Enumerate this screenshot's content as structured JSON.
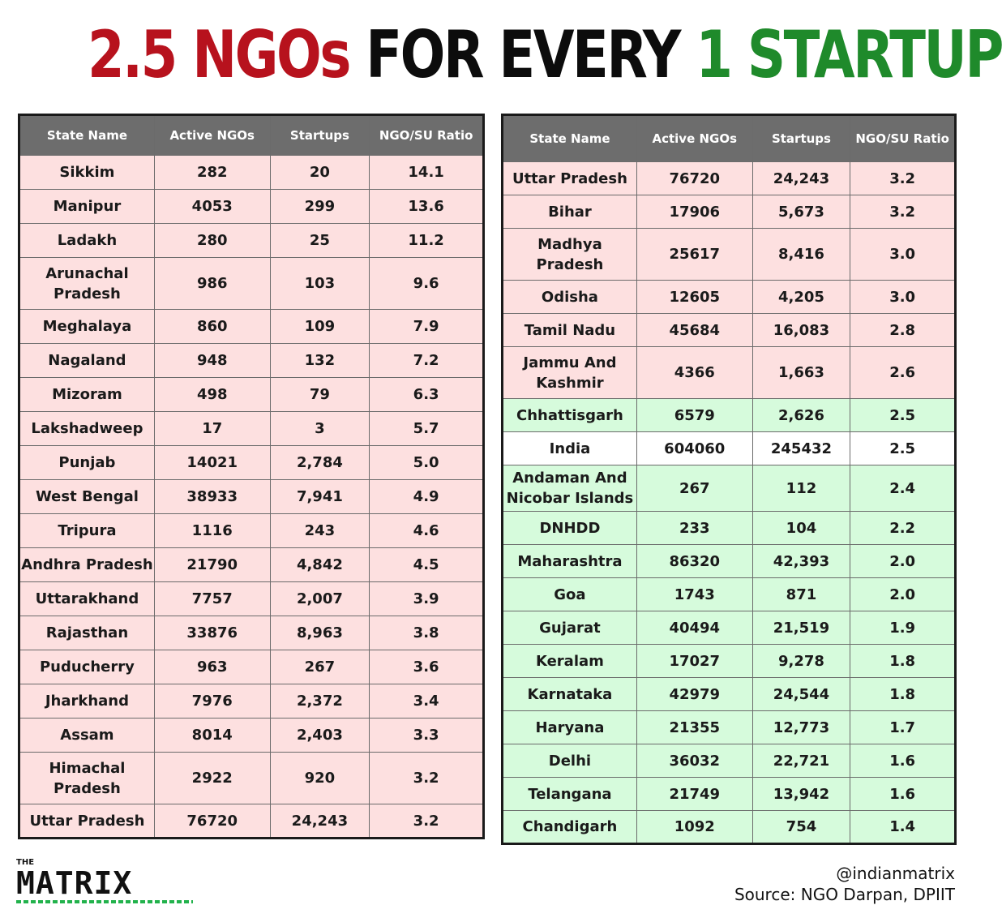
{
  "title": {
    "part1": "2.5 NGOs",
    "part2": "FOR EVERY",
    "part3": "1 STARTUP",
    "colors": {
      "red": "#b7121d",
      "black": "#0c0c0c",
      "green": "#1f8a2b"
    }
  },
  "columns": [
    "State Name",
    "Active NGOs",
    "Startups",
    "NGO/SU Ratio"
  ],
  "row_colors": {
    "pink": "#fde0e0",
    "green": "#d6fbdc",
    "white": "#ffffff",
    "header": "#6d6d6d"
  },
  "left_rows": [
    {
      "state": "Sikkim",
      "ngos": "282",
      "startups": "20",
      "ratio": "14.1",
      "tone": "pink"
    },
    {
      "state": "Manipur",
      "ngos": "4053",
      "startups": "299",
      "ratio": "13.6",
      "tone": "pink"
    },
    {
      "state": "Ladakh",
      "ngos": "280",
      "startups": "25",
      "ratio": "11.2",
      "tone": "pink"
    },
    {
      "state": "Arunachal Pradesh",
      "ngos": "986",
      "startups": "103",
      "ratio": "9.6",
      "tone": "pink"
    },
    {
      "state": "Meghalaya",
      "ngos": "860",
      "startups": "109",
      "ratio": "7.9",
      "tone": "pink"
    },
    {
      "state": "Nagaland",
      "ngos": "948",
      "startups": "132",
      "ratio": "7.2",
      "tone": "pink"
    },
    {
      "state": "Mizoram",
      "ngos": "498",
      "startups": "79",
      "ratio": "6.3",
      "tone": "pink"
    },
    {
      "state": "Lakshadweep",
      "ngos": "17",
      "startups": "3",
      "ratio": "5.7",
      "tone": "pink"
    },
    {
      "state": "Punjab",
      "ngos": "14021",
      "startups": "2,784",
      "ratio": "5.0",
      "tone": "pink"
    },
    {
      "state": "West Bengal",
      "ngos": "38933",
      "startups": "7,941",
      "ratio": "4.9",
      "tone": "pink"
    },
    {
      "state": "Tripura",
      "ngos": "1116",
      "startups": "243",
      "ratio": "4.6",
      "tone": "pink"
    },
    {
      "state": "Andhra Pradesh",
      "ngos": "21790",
      "startups": "4,842",
      "ratio": "4.5",
      "tone": "pink"
    },
    {
      "state": "Uttarakhand",
      "ngos": "7757",
      "startups": "2,007",
      "ratio": "3.9",
      "tone": "pink"
    },
    {
      "state": "Rajasthan",
      "ngos": "33876",
      "startups": "8,963",
      "ratio": "3.8",
      "tone": "pink"
    },
    {
      "state": "Puducherry",
      "ngos": "963",
      "startups": "267",
      "ratio": "3.6",
      "tone": "pink"
    },
    {
      "state": "Jharkhand",
      "ngos": "7976",
      "startups": "2,372",
      "ratio": "3.4",
      "tone": "pink"
    },
    {
      "state": "Assam",
      "ngos": "8014",
      "startups": "2,403",
      "ratio": "3.3",
      "tone": "pink"
    },
    {
      "state": "Himachal Pradesh",
      "ngos": "2922",
      "startups": "920",
      "ratio": "3.2",
      "tone": "pink"
    },
    {
      "state": "Uttar Pradesh",
      "ngos": "76720",
      "startups": "24,243",
      "ratio": "3.2",
      "tone": "pink"
    }
  ],
  "right_rows": [
    {
      "state": "Uttar Pradesh",
      "ngos": "76720",
      "startups": "24,243",
      "ratio": "3.2",
      "tone": "pink"
    },
    {
      "state": "Bihar",
      "ngos": "17906",
      "startups": "5,673",
      "ratio": "3.2",
      "tone": "pink"
    },
    {
      "state": "Madhya Pradesh",
      "ngos": "25617",
      "startups": "8,416",
      "ratio": "3.0",
      "tone": "pink"
    },
    {
      "state": "Odisha",
      "ngos": "12605",
      "startups": "4,205",
      "ratio": "3.0",
      "tone": "pink"
    },
    {
      "state": "Tamil Nadu",
      "ngos": "45684",
      "startups": "16,083",
      "ratio": "2.8",
      "tone": "pink"
    },
    {
      "state": "Jammu And Kashmir",
      "ngos": "4366",
      "startups": "1,663",
      "ratio": "2.6",
      "tone": "pink"
    },
    {
      "state": "Chhattisgarh",
      "ngos": "6579",
      "startups": "2,626",
      "ratio": "2.5",
      "tone": "green"
    },
    {
      "state": "India",
      "ngos": "604060",
      "startups": "245432",
      "ratio": "2.5",
      "tone": "white"
    },
    {
      "state": "Andaman And Nicobar Islands",
      "ngos": "267",
      "startups": "112",
      "ratio": "2.4",
      "tone": "green"
    },
    {
      "state": "DNHDD",
      "ngos": "233",
      "startups": "104",
      "ratio": "2.2",
      "tone": "green"
    },
    {
      "state": "Maharashtra",
      "ngos": "86320",
      "startups": "42,393",
      "ratio": "2.0",
      "tone": "green"
    },
    {
      "state": "Goa",
      "ngos": "1743",
      "startups": "871",
      "ratio": "2.0",
      "tone": "green"
    },
    {
      "state": "Gujarat",
      "ngos": "40494",
      "startups": "21,519",
      "ratio": "1.9",
      "tone": "green"
    },
    {
      "state": "Keralam",
      "ngos": "17027",
      "startups": "9,278",
      "ratio": "1.8",
      "tone": "green"
    },
    {
      "state": "Karnataka",
      "ngos": "42979",
      "startups": "24,544",
      "ratio": "1.8",
      "tone": "green"
    },
    {
      "state": "Haryana",
      "ngos": "21355",
      "startups": "12,773",
      "ratio": "1.7",
      "tone": "green"
    },
    {
      "state": "Delhi",
      "ngos": "36032",
      "startups": "22,721",
      "ratio": "1.6",
      "tone": "green"
    },
    {
      "state": "Telangana",
      "ngos": "21749",
      "startups": "13,942",
      "ratio": "1.6",
      "tone": "green"
    },
    {
      "state": "Chandigarh",
      "ngos": "1092",
      "startups": "754",
      "ratio": "1.4",
      "tone": "green"
    }
  ],
  "logo": {
    "the": "THE",
    "name": "MATRIX"
  },
  "credits": {
    "handle": "@indianmatrix",
    "source": "Source: NGO Darpan, DPIIT"
  }
}
